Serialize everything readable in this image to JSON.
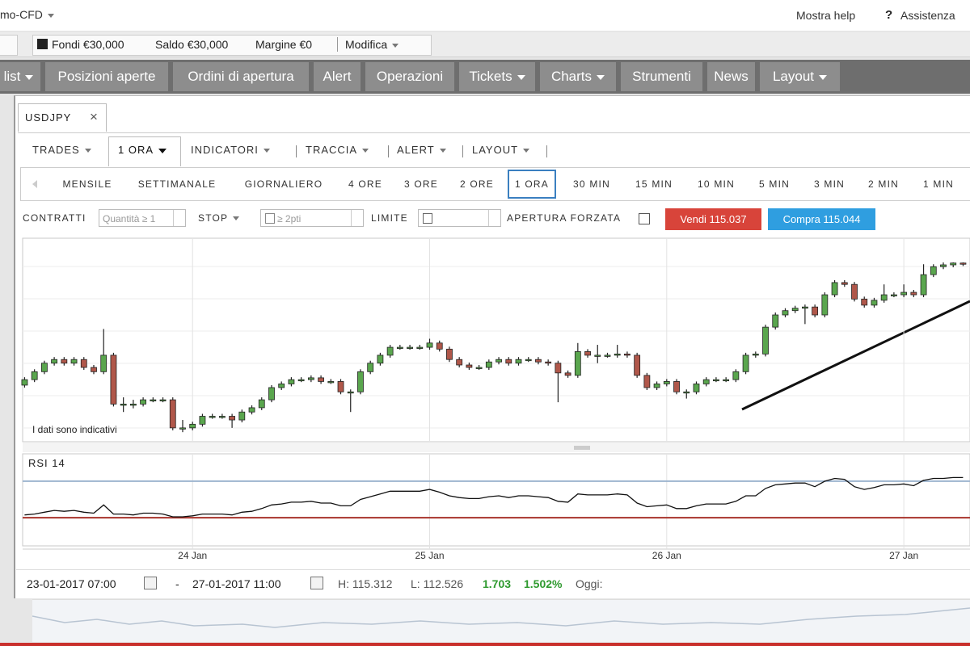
{
  "app": {
    "name": "mo-CFD",
    "help": "Mostra help",
    "help_icon": "?",
    "support": "Assistenza"
  },
  "account": {
    "items": [
      "Fondi €30,000",
      "Saldo €30,000",
      "Margine €0"
    ],
    "edit": "Modifica"
  },
  "menu": [
    "list",
    "Posizioni aperte",
    "Ordini di apertura",
    "Alert",
    "Operazioni",
    "Tickets",
    "Charts",
    "Strumenti",
    "News",
    "Layout"
  ],
  "tab": {
    "symbol": "USDJPY",
    "close": "×"
  },
  "toolbar": [
    "TRADES",
    "1 ORA",
    "INDICATORI",
    "TRACCIA",
    "ALERT",
    "LAYOUT"
  ],
  "timeframes": {
    "options": [
      "MENSILE",
      "SETTIMANALE",
      "GIORNALIERO",
      "4 ORE",
      "3 ORE",
      "2 ORE",
      "1 ORA",
      "30 MIN",
      "15 MIN",
      "10 MIN",
      "5 MIN",
      "3 MIN",
      "2 MIN",
      "1 MIN"
    ],
    "selected": 6
  },
  "order": {
    "contracts": "CONTRATTI",
    "quantity_placeholder": "Quantità ≥ 1",
    "stop": "STOP",
    "stop_placeholder": "≥ 2pti",
    "limit": "LIMITE",
    "forced": "APERTURA FORZATA",
    "sell": "Vendi 115.037",
    "buy": "Compra 115.044"
  },
  "chart_data": [
    {
      "type": "candlestick",
      "annotation": "I dati sono indicativi",
      "xlim": [
        -0.2,
        95.7
      ],
      "ylim": [
        112.4,
        115.68
      ],
      "xticks": [
        {
          "value": 17,
          "label": "24 Jan"
        },
        {
          "value": 41,
          "label": "25 Jan"
        },
        {
          "value": 65,
          "label": "26 Jan"
        },
        {
          "value": 89,
          "label": "27 Jan"
        }
      ],
      "up_color": "#5aa64e",
      "down_color": "#b0574a",
      "open": [
        113.3,
        113.39,
        113.52,
        113.66,
        113.72,
        113.66,
        113.72,
        113.59,
        113.52,
        113.79,
        112.99,
        112.99,
        112.99,
        113.06,
        113.06,
        113.06,
        112.6,
        112.6,
        112.66,
        112.79,
        112.79,
        112.79,
        112.73,
        112.86,
        112.93,
        113.06,
        113.26,
        113.32,
        113.39,
        113.39,
        113.42,
        113.36,
        113.36,
        113.19,
        113.19,
        113.52,
        113.66,
        113.79,
        113.92,
        113.92,
        113.92,
        113.92,
        113.99,
        113.89,
        113.72,
        113.63,
        113.59,
        113.59,
        113.68,
        113.72,
        113.66,
        113.72,
        113.72,
        113.68,
        113.66,
        113.5,
        113.46,
        113.85,
        113.79,
        113.79,
        113.79,
        113.81,
        113.79,
        113.46,
        113.26,
        113.32,
        113.36,
        113.19,
        113.19,
        113.32,
        113.39,
        113.39,
        113.39,
        113.52,
        113.79,
        113.81,
        114.25,
        114.45,
        114.52,
        114.56,
        114.58,
        114.45,
        114.78,
        114.98,
        114.95,
        114.71,
        114.61,
        114.69,
        114.78,
        114.78,
        114.82,
        114.78,
        115.11,
        115.24,
        115.27,
        115.3
      ],
      "high": [
        113.43,
        113.56,
        113.7,
        113.76,
        113.76,
        113.76,
        113.76,
        113.63,
        114.22,
        113.83,
        113.1,
        113.06,
        113.1,
        113.1,
        113.1,
        113.1,
        112.73,
        112.7,
        112.83,
        112.83,
        112.83,
        112.83,
        112.9,
        112.97,
        113.1,
        113.3,
        113.36,
        113.43,
        113.43,
        113.46,
        113.46,
        113.4,
        113.4,
        113.23,
        113.56,
        113.7,
        113.83,
        113.96,
        113.96,
        113.96,
        113.96,
        114.06,
        114.03,
        113.93,
        113.76,
        113.67,
        113.63,
        113.72,
        113.76,
        113.76,
        113.76,
        113.76,
        113.76,
        113.72,
        113.7,
        113.54,
        113.99,
        113.89,
        113.96,
        113.83,
        113.96,
        113.85,
        113.83,
        113.5,
        113.36,
        113.4,
        113.4,
        113.23,
        113.36,
        113.43,
        113.43,
        113.43,
        113.56,
        113.83,
        113.85,
        114.29,
        114.49,
        114.56,
        114.6,
        114.62,
        114.62,
        114.82,
        115.02,
        115.02,
        114.99,
        114.75,
        114.73,
        114.95,
        114.82,
        114.95,
        114.86,
        115.28,
        115.28,
        115.31,
        115.31,
        115.31
      ],
      "low": [
        113.26,
        113.35,
        113.48,
        113.62,
        113.62,
        113.62,
        113.55,
        113.48,
        113.48,
        112.95,
        112.86,
        112.92,
        112.95,
        113.02,
        113.02,
        112.56,
        112.53,
        112.56,
        112.62,
        112.75,
        112.75,
        112.6,
        112.69,
        112.82,
        112.89,
        113.02,
        113.22,
        113.28,
        113.35,
        113.35,
        113.32,
        113.32,
        113.15,
        112.86,
        113.15,
        113.48,
        113.62,
        113.75,
        113.88,
        113.88,
        113.88,
        113.88,
        113.85,
        113.68,
        113.59,
        113.55,
        113.55,
        113.55,
        113.64,
        113.62,
        113.62,
        113.68,
        113.64,
        113.62,
        113.02,
        113.42,
        113.42,
        113.75,
        113.66,
        113.75,
        113.75,
        113.75,
        113.42,
        113.22,
        113.22,
        113.28,
        113.15,
        113.08,
        113.15,
        113.28,
        113.35,
        113.35,
        113.35,
        113.48,
        113.75,
        113.77,
        114.21,
        114.41,
        114.48,
        114.3,
        114.41,
        114.41,
        114.74,
        114.91,
        114.67,
        114.57,
        114.57,
        114.65,
        114.74,
        114.74,
        114.74,
        114.74,
        115.07,
        115.2,
        115.23,
        115.25
      ],
      "close": [
        113.39,
        113.52,
        113.66,
        113.72,
        113.66,
        113.72,
        113.59,
        113.52,
        113.79,
        112.99,
        112.99,
        112.99,
        113.06,
        113.06,
        113.06,
        112.6,
        112.6,
        112.66,
        112.79,
        112.79,
        112.79,
        112.73,
        112.86,
        112.93,
        113.06,
        113.26,
        113.32,
        113.39,
        113.39,
        113.42,
        113.36,
        113.36,
        113.19,
        113.19,
        113.52,
        113.66,
        113.79,
        113.92,
        113.92,
        113.92,
        113.92,
        113.99,
        113.89,
        113.72,
        113.63,
        113.59,
        113.59,
        113.68,
        113.72,
        113.66,
        113.72,
        113.72,
        113.68,
        113.66,
        113.5,
        113.46,
        113.85,
        113.79,
        113.79,
        113.79,
        113.81,
        113.79,
        113.46,
        113.26,
        113.32,
        113.36,
        113.19,
        113.19,
        113.32,
        113.39,
        113.39,
        113.39,
        113.52,
        113.79,
        113.81,
        114.25,
        114.45,
        114.52,
        114.56,
        114.58,
        114.45,
        114.78,
        114.98,
        114.95,
        114.71,
        114.61,
        114.69,
        114.78,
        114.78,
        114.82,
        114.78,
        115.11,
        115.24,
        115.27,
        115.3,
        115.29
      ]
    },
    {
      "type": "line",
      "title": "RSI 14",
      "ylim": [
        0,
        100
      ],
      "color": "#111111",
      "levels": [
        {
          "value": 70,
          "color": "#9db4cf"
        },
        {
          "value": 30,
          "color": "#a8332b"
        }
      ],
      "values": [
        33,
        34,
        36,
        38,
        37,
        38,
        36,
        35,
        44,
        34,
        34,
        33,
        35,
        35,
        34,
        31,
        31,
        32,
        34,
        34,
        34,
        33,
        36,
        37,
        40,
        44,
        45,
        47,
        47,
        48,
        46,
        46,
        43,
        43,
        50,
        53,
        56,
        59,
        59,
        59,
        59,
        61,
        58,
        54,
        52,
        51,
        51,
        53,
        54,
        52,
        54,
        54,
        53,
        52,
        48,
        47,
        56,
        55,
        55,
        55,
        56,
        55,
        46,
        42,
        43,
        44,
        40,
        40,
        43,
        45,
        45,
        45,
        48,
        54,
        54,
        62,
        66,
        67,
        68,
        68,
        64,
        70,
        73,
        72,
        64,
        61,
        63,
        66,
        66,
        67,
        65,
        71,
        73,
        73,
        74,
        74
      ]
    }
  ],
  "range": {
    "from": "23-01-2017 07:00",
    "sep": "-",
    "to": "27-01-2017 11:00",
    "high": "H: 115.312",
    "low": "L: 112.526",
    "change": "1.703",
    "change_pct": "1.502%",
    "today": "Oggi:"
  }
}
